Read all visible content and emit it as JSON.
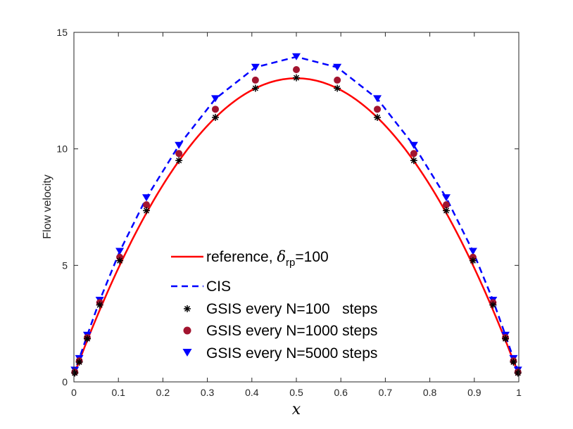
{
  "chart_data": {
    "type": "line",
    "title": "",
    "xlabel": "x",
    "ylabel": "Flow velocity",
    "xlim": [
      0,
      1
    ],
    "ylim": [
      0,
      15
    ],
    "x_ticks": [
      "0",
      "0.1",
      "0.2",
      "0.3",
      "0.4",
      "0.5",
      "0.6",
      "0.7",
      "0.8",
      "0.9",
      "1"
    ],
    "y_ticks": [
      "0",
      "5",
      "10",
      "15"
    ],
    "grid": false,
    "legend_position": "center",
    "series": [
      {
        "name": "reference, δrp=100",
        "legend_main": "reference, ",
        "legend_symbol": "δ",
        "legend_sub": "rp",
        "legend_tail": "=100",
        "style": "solid-line",
        "color": "#ff0000",
        "curve": "parabola",
        "x_range": [
          0,
          1
        ],
        "boundary_value": 0.3,
        "peak_value": 13.03
      },
      {
        "name": "CIS",
        "style": "dashed-line",
        "color": "#0000ff",
        "x": [
          0,
          0.002,
          0.012,
          0.03,
          0.058,
          0.103,
          0.163,
          0.236,
          0.318,
          0.408,
          0.5,
          0.592,
          0.682,
          0.764,
          0.837,
          0.897,
          0.942,
          0.97,
          0.988,
          0.998,
          1
        ],
        "y": [
          0.3,
          0.5,
          1.0,
          2.0,
          3.5,
          5.6,
          7.9,
          10.15,
          12.15,
          13.5,
          13.95,
          13.5,
          12.15,
          10.15,
          7.9,
          5.6,
          3.5,
          2.0,
          1.0,
          0.5,
          0.3
        ]
      },
      {
        "name": "GSIS every N=100   steps",
        "style": "asterisk",
        "color": "#000000",
        "x": [
          0.002,
          0.012,
          0.03,
          0.058,
          0.103,
          0.163,
          0.236,
          0.318,
          0.408,
          0.5,
          0.592,
          0.682,
          0.764,
          0.837,
          0.897,
          0.942,
          0.97,
          0.988,
          0.998
        ],
        "y": [
          0.38,
          0.85,
          1.85,
          3.3,
          5.2,
          7.35,
          9.5,
          11.35,
          12.6,
          13.05,
          12.6,
          11.35,
          9.5,
          7.35,
          5.2,
          3.3,
          1.85,
          0.85,
          0.38
        ]
      },
      {
        "name": "GSIS every N=1000 steps",
        "style": "circle",
        "color": "#a2142f",
        "x": [
          0.002,
          0.012,
          0.03,
          0.058,
          0.103,
          0.163,
          0.236,
          0.318,
          0.408,
          0.5,
          0.592,
          0.682,
          0.764,
          0.837,
          0.897,
          0.942,
          0.97,
          0.988,
          0.998
        ],
        "y": [
          0.42,
          0.9,
          1.9,
          3.4,
          5.35,
          7.6,
          9.8,
          11.7,
          12.95,
          13.4,
          12.95,
          11.7,
          9.8,
          7.6,
          5.35,
          3.4,
          1.9,
          0.9,
          0.42
        ]
      },
      {
        "name": "GSIS every N=5000 steps",
        "style": "triangle-down",
        "color": "#0000ff",
        "x": [
          0.002,
          0.012,
          0.03,
          0.058,
          0.103,
          0.163,
          0.236,
          0.318,
          0.408,
          0.5,
          0.592,
          0.682,
          0.764,
          0.837,
          0.897,
          0.942,
          0.97,
          0.988,
          0.998
        ],
        "y": [
          0.5,
          1.0,
          2.0,
          3.5,
          5.6,
          7.9,
          10.15,
          12.15,
          13.5,
          13.95,
          13.5,
          12.15,
          10.15,
          7.9,
          5.6,
          3.5,
          2.0,
          1.0,
          0.5
        ]
      }
    ]
  }
}
